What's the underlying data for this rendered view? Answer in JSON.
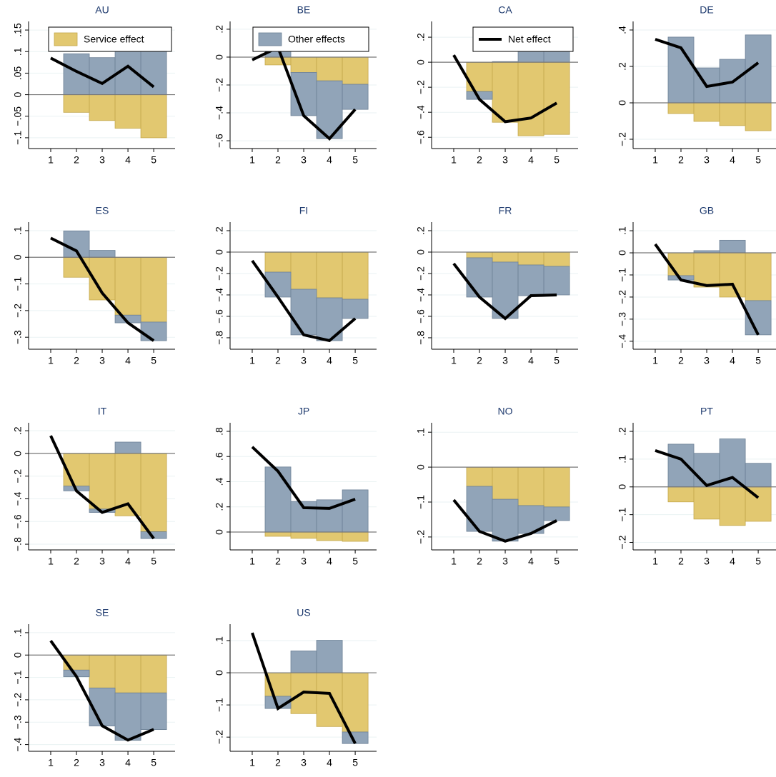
{
  "chart_data": {
    "type": "small-multiples",
    "x": [
      1,
      2,
      3,
      4,
      5
    ],
    "xlim": [
      0.14,
      5.83
    ],
    "xticks": [
      1,
      2,
      3,
      4,
      5
    ],
    "grid": true,
    "series": [
      {
        "name": "Service effect",
        "type": "bar",
        "color": "#e2c870"
      },
      {
        "name": "Other effects",
        "type": "bar",
        "color": "#91a4b8"
      },
      {
        "name": "Net effect",
        "type": "line",
        "color": "#000000"
      }
    ],
    "panels": [
      {
        "title": "AU",
        "ylim": [
          -0.125,
          0.17
        ],
        "yticks": [
          {
            "value": 0.15,
            "label": ".15"
          },
          {
            "value": 0.1,
            "label": ".1"
          },
          {
            "value": 0.05,
            "label": ".05"
          },
          0,
          {
            "value": -0.05,
            "label": "−.05"
          },
          {
            "value": -0.1,
            "label": "−.1"
          }
        ],
        "series": [
          {
            "values": [
              null,
              -0.041,
              -0.06,
              -0.078,
              -0.1
            ]
          },
          {
            "values": [
              null,
              0.095,
              0.086,
              0.144,
              0.118
            ]
          },
          {
            "values": [
              0.085,
              0.054,
              0.026,
              0.066,
              0.018
            ]
          }
        ]
      },
      {
        "title": "BE",
        "ylim": [
          -0.656,
          0.256
        ],
        "yticks": [
          {
            "value": 0.2,
            "label": ".2"
          },
          0,
          {
            "value": -0.2,
            "label": "−.2"
          },
          {
            "value": -0.4,
            "label": "−.4"
          },
          {
            "value": -0.6,
            "label": "−.6"
          }
        ],
        "series": [
          {
            "values": [
              null,
              -0.056,
              -0.11,
              -0.17,
              -0.195
            ]
          },
          {
            "values": [
              null,
              0.126,
              -0.31,
              -0.415,
              -0.18
            ]
          },
          {
            "values": [
              -0.02,
              0.07,
              -0.42,
              -0.585,
              -0.375
            ]
          }
        ]
      },
      {
        "title": "CA",
        "ylim": [
          -0.69,
          0.326
        ],
        "yticks": [
          {
            "value": 0.2,
            "label": ".2"
          },
          0,
          {
            "value": -0.2,
            "label": "−.2"
          },
          {
            "value": -0.4,
            "label": "−.4"
          },
          {
            "value": -0.6,
            "label": "−.6"
          }
        ],
        "series": [
          {
            "values": [
              null,
              -0.234,
              -0.48,
              -0.588,
              -0.577
            ]
          },
          {
            "values": [
              null,
              -0.063,
              0.005,
              0.142,
              0.251
            ]
          },
          {
            "values": [
              0.057,
              -0.297,
              -0.475,
              -0.446,
              -0.326
            ]
          }
        ]
      },
      {
        "title": "DE",
        "ylim": [
          -0.251,
          0.447
        ],
        "yticks": [
          {
            "value": 0.4,
            "label": ".4"
          },
          {
            "value": 0.2,
            "label": ".2"
          },
          0,
          {
            "value": -0.2,
            "label": "−.2"
          }
        ],
        "series": [
          {
            "values": [
              null,
              -0.059,
              -0.102,
              -0.125,
              -0.153
            ]
          },
          {
            "values": [
              null,
              0.361,
              0.192,
              0.239,
              0.373
            ]
          },
          {
            "values": [
              0.349,
              0.302,
              0.09,
              0.114,
              0.22
            ]
          }
        ]
      },
      {
        "title": "ES",
        "ylim": [
          -0.345,
          0.132
        ],
        "yticks": [
          {
            "value": 0.1,
            "label": ".1"
          },
          0,
          {
            "value": -0.1,
            "label": "−.1"
          },
          {
            "value": -0.2,
            "label": "−.2"
          },
          {
            "value": -0.3,
            "label": "−.3"
          }
        ],
        "series": [
          {
            "values": [
              null,
              -0.075,
              -0.16,
              -0.217,
              -0.243
            ]
          },
          {
            "values": [
              null,
              0.099,
              0.026,
              -0.029,
              -0.07
            ]
          },
          {
            "values": [
              0.072,
              0.024,
              -0.134,
              -0.246,
              -0.313
            ]
          }
        ]
      },
      {
        "title": "FI",
        "ylim": [
          -0.907,
          0.28
        ],
        "yticks": [
          {
            "value": 0.2,
            "label": ".2"
          },
          0,
          {
            "value": -0.2,
            "label": "−.2"
          },
          {
            "value": -0.4,
            "label": "−.4"
          },
          {
            "value": -0.6,
            "label": "−.6"
          },
          {
            "value": -0.8,
            "label": "−.8"
          }
        ],
        "series": [
          {
            "values": [
              null,
              -0.187,
              -0.347,
              -0.427,
              -0.44
            ]
          },
          {
            "values": [
              null,
              -0.233,
              -0.426,
              -0.4,
              -0.18
            ]
          },
          {
            "values": [
              -0.08,
              -0.42,
              -0.773,
              -0.827,
              -0.62
            ]
          }
        ]
      },
      {
        "title": "FR",
        "ylim": [
          -0.907,
          0.28
        ],
        "yticks": [
          {
            "value": 0.2,
            "label": ".2"
          },
          0,
          {
            "value": -0.2,
            "label": "−.2"
          },
          {
            "value": -0.4,
            "label": "−.4"
          },
          {
            "value": -0.6,
            "label": "−.6"
          },
          {
            "value": -0.8,
            "label": "−.8"
          }
        ],
        "series": [
          {
            "values": [
              null,
              -0.053,
              -0.093,
              -0.12,
              -0.133
            ]
          },
          {
            "values": [
              null,
              -0.367,
              -0.527,
              -0.287,
              -0.267
            ]
          },
          {
            "values": [
              -0.107,
              -0.42,
              -0.62,
              -0.407,
              -0.4
            ]
          }
        ]
      },
      {
        "title": "GB",
        "ylim": [
          -0.436,
          0.139
        ],
        "yticks": [
          {
            "value": 0.1,
            "label": ".1"
          },
          0,
          {
            "value": -0.1,
            "label": "−.1"
          },
          {
            "value": -0.2,
            "label": "−.2"
          },
          {
            "value": -0.3,
            "label": "−.3"
          },
          {
            "value": -0.4,
            "label": "−.4"
          }
        ],
        "series": [
          {
            "values": [
              null,
              -0.103,
              -0.155,
              -0.2,
              -0.216
            ]
          },
          {
            "values": [
              null,
              -0.02,
              0.01,
              0.057,
              -0.155
            ]
          },
          {
            "values": [
              0.039,
              -0.123,
              -0.148,
              -0.142,
              -0.371
            ]
          }
        ]
      },
      {
        "title": "IT",
        "ylim": [
          -0.85,
          0.27
        ],
        "yticks": [
          {
            "value": 0.2,
            "label": ".2"
          },
          0,
          {
            "value": -0.2,
            "label": "−.2"
          },
          {
            "value": -0.4,
            "label": "−.4"
          },
          {
            "value": -0.6,
            "label": "−.6"
          },
          {
            "value": -0.8,
            "label": "−.8"
          }
        ],
        "series": [
          {
            "values": [
              null,
              -0.288,
              -0.49,
              -0.55,
              -0.69
            ]
          },
          {
            "values": [
              null,
              -0.042,
              -0.03,
              0.1,
              -0.06
            ]
          },
          {
            "values": [
              0.156,
              -0.33,
              -0.52,
              -0.444,
              -0.75
            ]
          }
        ]
      },
      {
        "title": "JP",
        "ylim": [
          -0.142,
          0.868
        ],
        "yticks": [
          {
            "value": 0.8,
            "label": ".8"
          },
          {
            "value": 0.6,
            "label": ".6"
          },
          {
            "value": 0.4,
            "label": ".4"
          },
          {
            "value": 0.2,
            "label": ".2"
          },
          0
        ],
        "series": [
          {
            "values": [
              null,
              -0.034,
              -0.05,
              -0.068,
              -0.074
            ]
          },
          {
            "values": [
              null,
              0.517,
              0.243,
              0.256,
              0.335
            ]
          },
          {
            "values": [
              0.676,
              0.483,
              0.193,
              0.188,
              0.261
            ]
          }
        ]
      },
      {
        "title": "NO",
        "ylim": [
          -0.237,
          0.127
        ],
        "yticks": [
          {
            "value": 0.1,
            "label": ".1"
          },
          0,
          {
            "value": -0.1,
            "label": "−.1"
          },
          {
            "value": -0.2,
            "label": "−.2"
          }
        ],
        "series": [
          {
            "values": [
              null,
              -0.055,
              -0.092,
              -0.11,
              -0.114
            ]
          },
          {
            "values": [
              null,
              -0.129,
              -0.12,
              -0.08,
              -0.039
            ]
          },
          {
            "values": [
              -0.094,
              -0.184,
              -0.212,
              -0.19,
              -0.153
            ]
          }
        ]
      },
      {
        "title": "PT",
        "ylim": [
          -0.227,
          0.231
        ],
        "yticks": [
          {
            "value": 0.2,
            "label": ".2"
          },
          {
            "value": 0.1,
            "label": ".1"
          },
          0,
          {
            "value": -0.1,
            "label": "−.1"
          },
          {
            "value": -0.2,
            "label": "−.2"
          }
        ],
        "series": [
          {
            "values": [
              null,
              -0.054,
              -0.116,
              -0.139,
              -0.124
            ]
          },
          {
            "values": [
              null,
              0.154,
              0.121,
              0.173,
              0.085
            ]
          },
          {
            "values": [
              0.131,
              0.1,
              0.005,
              0.034,
              -0.039
            ]
          }
        ]
      },
      {
        "title": "SE",
        "ylim": [
          -0.43,
          0.138
        ],
        "yticks": [
          {
            "value": 0.1,
            "label": ".1"
          },
          0,
          {
            "value": -0.1,
            "label": "−.1"
          },
          {
            "value": -0.2,
            "label": "−.2"
          },
          {
            "value": -0.3,
            "label": "−.3"
          },
          {
            "value": -0.4,
            "label": "−.4"
          }
        ],
        "series": [
          {
            "values": [
              null,
              -0.067,
              -0.147,
              -0.169,
              -0.169
            ]
          },
          {
            "values": [
              null,
              -0.03,
              -0.17,
              -0.212,
              -0.164
            ]
          },
          {
            "values": [
              0.064,
              -0.096,
              -0.316,
              -0.38,
              -0.332
            ]
          }
        ]
      },
      {
        "title": "US",
        "ylim": [
          -0.244,
          0.151
        ],
        "yticks": [
          {
            "value": 0.1,
            "label": ".1"
          },
          0,
          {
            "value": -0.1,
            "label": "−.1"
          },
          {
            "value": -0.2,
            "label": "−.2"
          }
        ],
        "series": [
          {
            "values": [
              null,
              -0.073,
              -0.127,
              -0.167,
              -0.184
            ]
          },
          {
            "values": [
              null,
              -0.038,
              0.068,
              0.101,
              -0.036
            ]
          },
          {
            "values": [
              0.124,
              -0.111,
              -0.06,
              -0.064,
              -0.22
            ]
          }
        ]
      }
    ]
  }
}
